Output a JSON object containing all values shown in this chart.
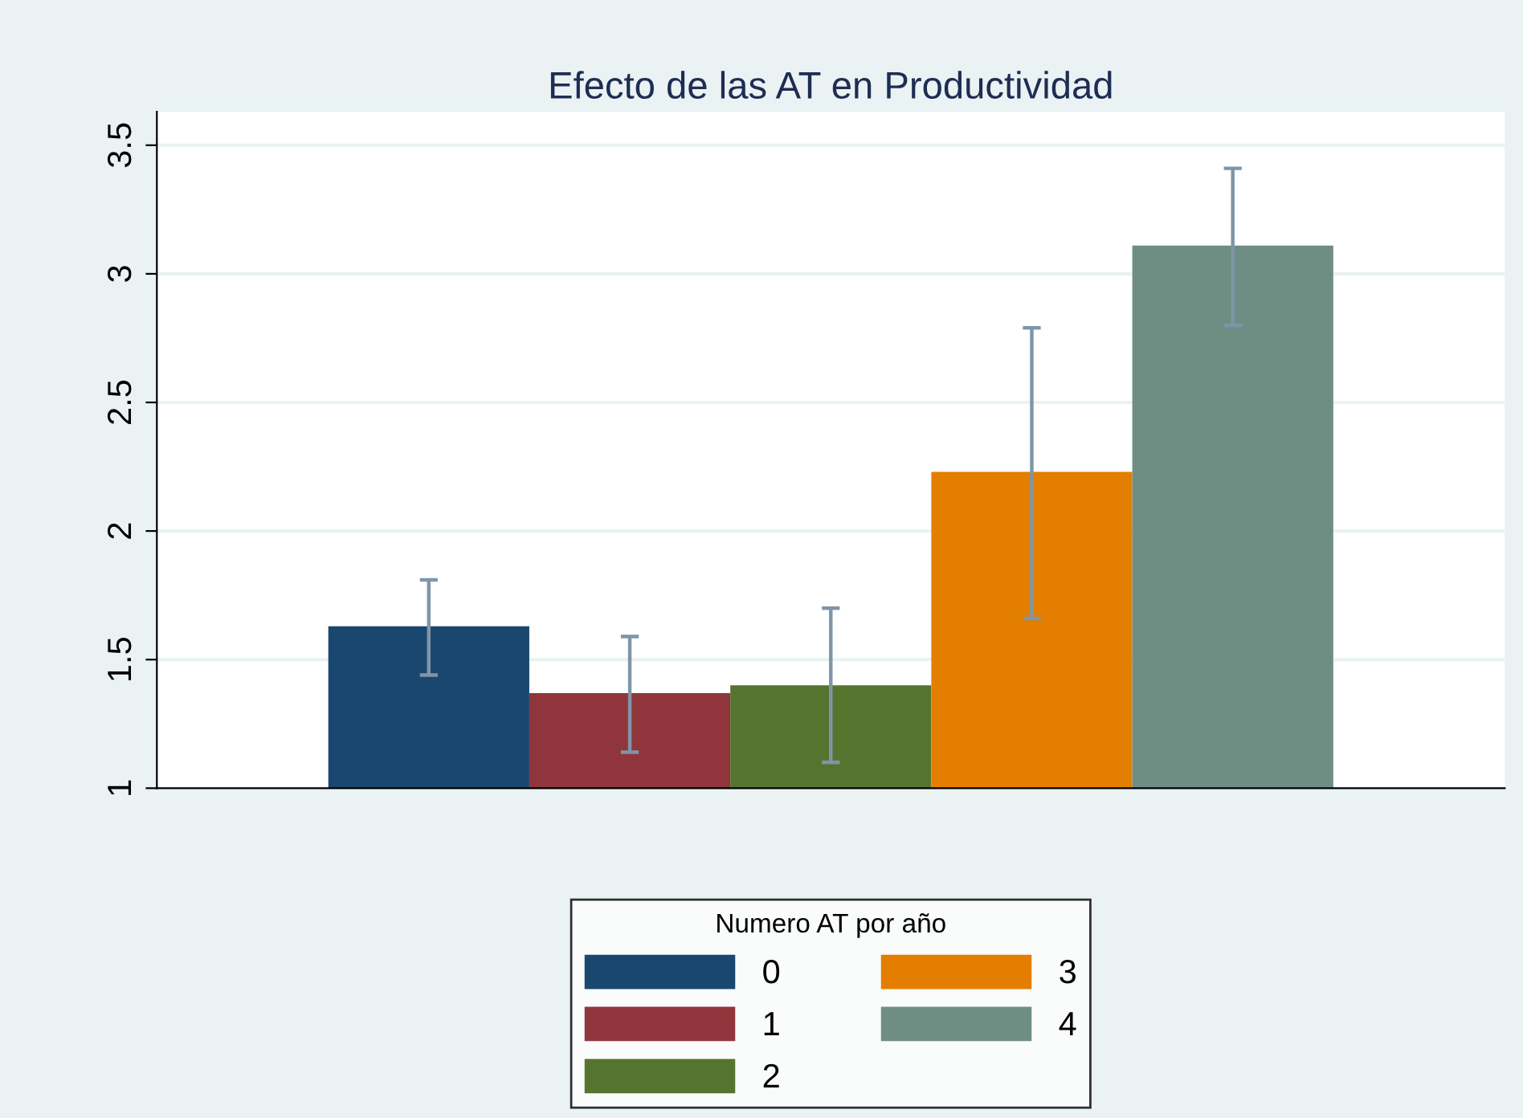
{
  "chart_data": {
    "type": "bar",
    "title": "Efecto de las AT en Productividad",
    "legend_title": "Numero AT por año",
    "categories": [
      null
    ],
    "series": [
      {
        "name": "0",
        "color": "#1a476f",
        "values": [
          1.63
        ],
        "errors": [
          [
            1.44,
            1.81
          ]
        ]
      },
      {
        "name": "1",
        "color": "#90353b",
        "values": [
          1.37
        ],
        "errors": [
          [
            1.14,
            1.59
          ]
        ]
      },
      {
        "name": "2",
        "color": "#55752f",
        "values": [
          1.4
        ],
        "errors": [
          [
            1.1,
            1.7
          ]
        ]
      },
      {
        "name": "3",
        "color": "#e37e00",
        "values": [
          2.23
        ],
        "errors": [
          [
            1.66,
            2.79
          ]
        ]
      },
      {
        "name": "4",
        "color": "#6e8e84",
        "values": [
          3.11
        ],
        "errors": [
          [
            2.8,
            3.41
          ]
        ]
      }
    ],
    "ylim": [
      1,
      3.63
    ],
    "yticks": [
      1,
      1.5,
      2,
      2.5,
      3,
      3.5
    ],
    "grid": "y",
    "legend": "bottom",
    "tick_labels": "y"
  }
}
